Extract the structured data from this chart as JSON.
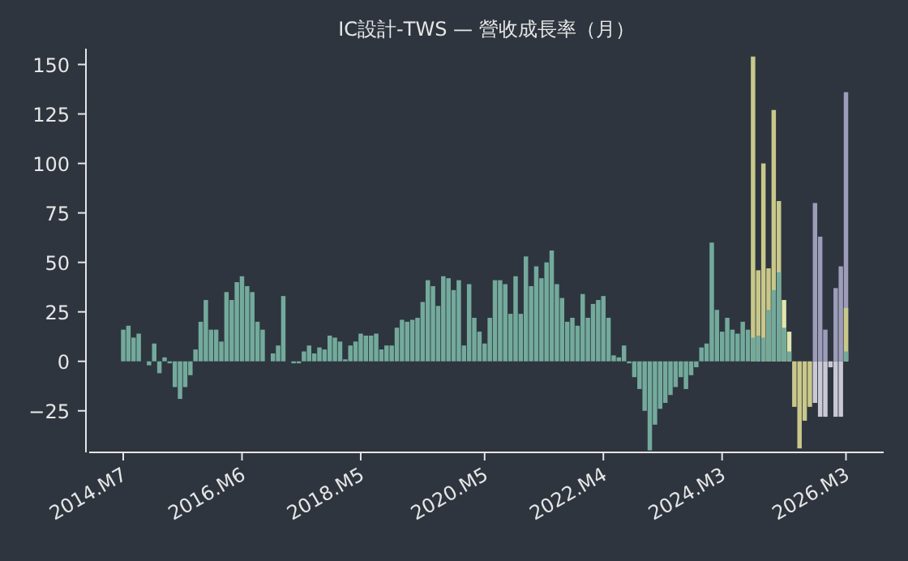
{
  "chart_data": {
    "type": "bar",
    "title": "IC設計-TWS — 營收成長率（月）",
    "categories": [
      "2014.M7",
      null,
      null,
      null,
      null,
      null,
      null,
      null,
      null,
      null,
      null,
      null,
      null,
      null,
      null,
      null,
      null,
      null,
      null,
      null,
      null,
      null,
      null,
      "2016.M6",
      null,
      null,
      null,
      null,
      null,
      null,
      null,
      null,
      null,
      null,
      null,
      null,
      null,
      null,
      null,
      null,
      null,
      null,
      null,
      null,
      null,
      null,
      "2018.M5",
      null,
      null,
      null,
      null,
      null,
      null,
      null,
      null,
      null,
      null,
      null,
      null,
      null,
      null,
      null,
      null,
      null,
      null,
      null,
      null,
      null,
      null,
      null,
      "2020.M5",
      null,
      null,
      null,
      null,
      null,
      null,
      null,
      null,
      null,
      null,
      null,
      null,
      null,
      null,
      null,
      null,
      null,
      null,
      null,
      null,
      null,
      null,
      "2022.M4",
      null,
      null,
      null,
      null,
      null,
      null,
      null,
      null,
      null,
      null,
      null,
      null,
      null,
      null,
      null,
      null,
      null,
      null,
      null,
      null,
      null,
      null,
      "2024.M3",
      null,
      null,
      null,
      null,
      null,
      null,
      null,
      null,
      null,
      null,
      null,
      null,
      null,
      null,
      null,
      null,
      null,
      null,
      null,
      null,
      null,
      null,
      null,
      "2026.M3"
    ],
    "ylim": [
      -46,
      158
    ],
    "yticks": [
      -25,
      0,
      25,
      50,
      75,
      100,
      125,
      150
    ],
    "series": [
      {
        "color": "#9d9db9",
        "values": [
          null,
          null,
          null,
          null,
          null,
          null,
          null,
          null,
          null,
          null,
          null,
          null,
          null,
          null,
          null,
          null,
          null,
          null,
          null,
          null,
          null,
          null,
          null,
          null,
          null,
          null,
          null,
          null,
          null,
          null,
          null,
          null,
          null,
          null,
          null,
          null,
          null,
          null,
          null,
          null,
          null,
          null,
          null,
          null,
          null,
          null,
          null,
          null,
          null,
          null,
          null,
          null,
          null,
          null,
          null,
          null,
          null,
          null,
          null,
          null,
          null,
          null,
          null,
          null,
          null,
          null,
          null,
          null,
          null,
          null,
          null,
          null,
          null,
          null,
          null,
          null,
          null,
          null,
          null,
          null,
          null,
          null,
          null,
          null,
          null,
          null,
          null,
          null,
          null,
          null,
          null,
          null,
          null,
          null,
          null,
          null,
          null,
          null,
          null,
          null,
          null,
          null,
          null,
          null,
          null,
          null,
          null,
          null,
          null,
          null,
          null,
          null,
          null,
          null,
          null,
          null,
          null,
          null,
          null,
          null,
          null,
          null,
          null,
          null,
          null,
          null,
          null,
          null,
          null,
          null,
          null,
          null,
          null,
          null,
          80,
          63,
          16,
          null,
          37,
          48,
          136
        ]
      },
      {
        "color": "#c9c9d6",
        "values": [
          null,
          null,
          null,
          null,
          null,
          null,
          null,
          null,
          null,
          null,
          null,
          null,
          null,
          null,
          null,
          null,
          null,
          null,
          null,
          null,
          null,
          null,
          null,
          null,
          null,
          null,
          null,
          null,
          null,
          null,
          null,
          null,
          null,
          null,
          null,
          null,
          null,
          null,
          null,
          null,
          null,
          null,
          null,
          null,
          null,
          null,
          null,
          null,
          null,
          null,
          null,
          null,
          null,
          null,
          null,
          null,
          null,
          null,
          null,
          null,
          null,
          null,
          null,
          null,
          null,
          null,
          null,
          null,
          null,
          null,
          null,
          null,
          null,
          null,
          null,
          null,
          null,
          null,
          null,
          null,
          null,
          null,
          null,
          null,
          null,
          null,
          null,
          null,
          null,
          null,
          null,
          null,
          null,
          null,
          null,
          null,
          null,
          null,
          null,
          null,
          null,
          null,
          null,
          null,
          null,
          null,
          null,
          null,
          null,
          null,
          null,
          null,
          null,
          null,
          null,
          null,
          null,
          null,
          null,
          null,
          null,
          null,
          null,
          null,
          null,
          null,
          null,
          null,
          null,
          null,
          null,
          null,
          null,
          null,
          -21,
          -28,
          -28,
          -3,
          -28,
          -28,
          null
        ]
      },
      {
        "color": "#c8c88a",
        "values": [
          null,
          null,
          null,
          null,
          null,
          null,
          null,
          null,
          null,
          null,
          null,
          null,
          null,
          null,
          null,
          null,
          null,
          null,
          null,
          null,
          null,
          null,
          null,
          null,
          null,
          null,
          null,
          null,
          null,
          null,
          null,
          null,
          null,
          null,
          null,
          null,
          null,
          null,
          null,
          null,
          null,
          null,
          null,
          null,
          null,
          null,
          null,
          null,
          null,
          null,
          null,
          null,
          null,
          null,
          null,
          null,
          null,
          null,
          null,
          null,
          null,
          null,
          null,
          null,
          null,
          null,
          null,
          null,
          null,
          null,
          null,
          null,
          null,
          null,
          null,
          null,
          null,
          null,
          null,
          null,
          null,
          null,
          null,
          null,
          null,
          null,
          null,
          null,
          null,
          null,
          null,
          null,
          null,
          null,
          null,
          null,
          null,
          null,
          null,
          null,
          null,
          null,
          null,
          null,
          null,
          null,
          null,
          null,
          null,
          null,
          null,
          null,
          null,
          null,
          null,
          null,
          null,
          null,
          null,
          null,
          null,
          null,
          154,
          46,
          100,
          47,
          127,
          81,
          null,
          null,
          -23,
          -44,
          -30,
          -23,
          null,
          null,
          null,
          null,
          null,
          null,
          27
        ]
      },
      {
        "color": "#dfe6b0",
        "values": [
          null,
          null,
          null,
          null,
          null,
          null,
          null,
          null,
          null,
          null,
          null,
          null,
          null,
          null,
          null,
          null,
          null,
          null,
          null,
          null,
          null,
          null,
          null,
          null,
          null,
          null,
          null,
          null,
          null,
          null,
          null,
          null,
          null,
          null,
          null,
          null,
          null,
          null,
          null,
          null,
          null,
          null,
          null,
          null,
          null,
          null,
          null,
          null,
          null,
          null,
          null,
          null,
          null,
          null,
          null,
          null,
          null,
          null,
          null,
          null,
          null,
          null,
          null,
          null,
          null,
          null,
          null,
          null,
          null,
          null,
          null,
          null,
          null,
          null,
          null,
          null,
          null,
          null,
          null,
          null,
          null,
          null,
          null,
          null,
          null,
          null,
          null,
          null,
          null,
          null,
          null,
          null,
          null,
          null,
          null,
          null,
          null,
          null,
          null,
          null,
          null,
          null,
          null,
          null,
          null,
          null,
          null,
          null,
          null,
          null,
          null,
          null,
          null,
          null,
          null,
          null,
          null,
          null,
          null,
          null,
          null,
          null,
          null,
          null,
          null,
          null,
          null,
          null,
          31,
          15,
          null,
          null,
          null,
          null,
          null,
          null,
          null,
          null,
          null,
          null,
          null
        ]
      },
      {
        "color": "#73aa9c",
        "values": [
          16,
          18,
          12,
          14,
          0,
          -2,
          9,
          -6,
          2,
          -1,
          -13,
          -19,
          -13,
          -7,
          6,
          20,
          31,
          16,
          16,
          10,
          35,
          31,
          40,
          43,
          38,
          35,
          20,
          16,
          null,
          4,
          8,
          33,
          null,
          -1,
          -1,
          5,
          8,
          4,
          7,
          6,
          13,
          12,
          10,
          1,
          8,
          10,
          14,
          13,
          13,
          14,
          6,
          8,
          8,
          17,
          21,
          20,
          21,
          22,
          30,
          41,
          38,
          28,
          43,
          42,
          36,
          41,
          8,
          39,
          22,
          15,
          9,
          22,
          41,
          41,
          39,
          24,
          43,
          24,
          53,
          38,
          48,
          42,
          50,
          56,
          39,
          32,
          20,
          22,
          18,
          34,
          22,
          29,
          31,
          33,
          22,
          3,
          2,
          8,
          -1,
          -8,
          -14,
          -25,
          -45,
          -32,
          -24,
          -21,
          -17,
          -13,
          -8,
          -14,
          -7,
          -3,
          7,
          9,
          60,
          26,
          15,
          22,
          16,
          14,
          20,
          16,
          12,
          13,
          12,
          26,
          36,
          45,
          17,
          5,
          null,
          null,
          null,
          null,
          null,
          null,
          null,
          null,
          null,
          null,
          5
        ]
      }
    ]
  }
}
